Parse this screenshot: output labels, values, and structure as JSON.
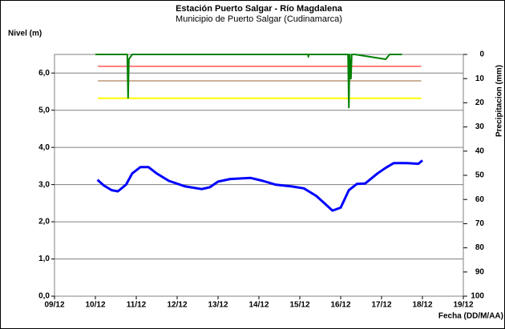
{
  "chart_data": {
    "type": "line",
    "title": "Estación Puerto Salgar - Río Magdalena",
    "subtitle": "Municipio de Puerto Salgar (Cudinamarca)",
    "ylabel": "Nivel (m)",
    "y2label": "Precipitacion (mm)",
    "xlabel": "Fecha (DD/M/AA)",
    "xlim": [
      9,
      19
    ],
    "xticks": [
      {
        "value": 9,
        "label": "09/12"
      },
      {
        "value": 10,
        "label": "10/12"
      },
      {
        "value": 11,
        "label": "11/12"
      },
      {
        "value": 12,
        "label": "12/12"
      },
      {
        "value": 13,
        "label": "13/12"
      },
      {
        "value": 14,
        "label": "14/12"
      },
      {
        "value": 15,
        "label": "15/12"
      },
      {
        "value": 16,
        "label": "16/12"
      },
      {
        "value": 17,
        "label": "17/12"
      },
      {
        "value": 18,
        "label": "18/12"
      },
      {
        "value": 19,
        "label": "19/12"
      }
    ],
    "ylim": [
      0,
      6.5
    ],
    "yticks": [
      {
        "value": 0,
        "label": "0,0"
      },
      {
        "value": 1,
        "label": "1,0"
      },
      {
        "value": 2,
        "label": "2,0"
      },
      {
        "value": 3,
        "label": "3,0"
      },
      {
        "value": 4,
        "label": "4,0"
      },
      {
        "value": 5,
        "label": "5,0"
      },
      {
        "value": 6,
        "label": "6,0"
      }
    ],
    "y2lim": [
      100,
      0
    ],
    "y2ticks": [
      0,
      10,
      20,
      30,
      40,
      50,
      60,
      70,
      80,
      90,
      100
    ],
    "grid": true,
    "series": [
      {
        "color": "#0000ff",
        "width": 3,
        "x": [
          10.05,
          10.2,
          10.4,
          10.55,
          10.75,
          10.9,
          11.1,
          11.3,
          11.5,
          11.8,
          12.2,
          12.6,
          12.8,
          13.0,
          13.3,
          13.8,
          14.1,
          14.4,
          14.8,
          15.1,
          15.4,
          15.6,
          15.8,
          16.0,
          16.2,
          16.4,
          16.6,
          16.9,
          17.1,
          17.3,
          17.6,
          17.9,
          18.0
        ],
        "values": [
          3.13,
          2.98,
          2.85,
          2.82,
          3.0,
          3.3,
          3.47,
          3.47,
          3.3,
          3.1,
          2.95,
          2.88,
          2.93,
          3.08,
          3.15,
          3.18,
          3.1,
          3.0,
          2.95,
          2.9,
          2.7,
          2.5,
          2.3,
          2.38,
          2.85,
          3.02,
          3.03,
          3.3,
          3.45,
          3.58,
          3.58,
          3.56,
          3.65
        ]
      },
      {
        "color": "#ff0000",
        "width": 1,
        "x": [
          10.06,
          17.97
        ],
        "values": [
          6.18,
          6.18
        ]
      },
      {
        "color": "#996633",
        "width": 1,
        "x": [
          10.06,
          17.97
        ],
        "values": [
          5.79,
          5.79
        ]
      },
      {
        "color": "#ffff00",
        "width": 2,
        "x": [
          10.06,
          17.97
        ],
        "values": [
          5.32,
          5.32
        ]
      },
      {
        "color": "#008000",
        "width": 2,
        "axis": "y2",
        "x": [
          10,
          10.78,
          10.8,
          10.82,
          10.9,
          11,
          15.2,
          15.21,
          15.22,
          16.18,
          16.2,
          16.22,
          16.25,
          16.27,
          16.35,
          17.1,
          17.15,
          17.2,
          17.5
        ],
        "values": [
          0,
          0,
          18,
          2,
          0,
          0,
          0,
          1,
          0,
          0,
          22,
          0,
          10,
          0,
          0,
          2,
          1,
          0,
          0
        ]
      }
    ]
  }
}
